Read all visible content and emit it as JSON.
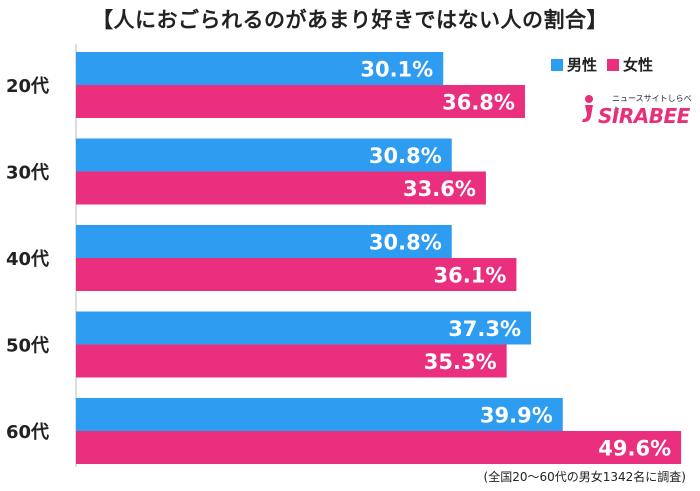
{
  "title": "【人におごられるのがあまり好きではない人の割合】",
  "legend": [
    {
      "label": "男性",
      "color": "#2e9cf0"
    },
    {
      "label": "女性",
      "color": "#ea2f7f"
    }
  ],
  "logo": {
    "tagline": "ニュースサイトしらべぇ",
    "brand": "SIRABEE"
  },
  "note": "(全国20〜60代の男女1342名に調査)",
  "chart_data": {
    "type": "bar",
    "orientation": "horizontal",
    "categories": [
      "20代",
      "30代",
      "40代",
      "50代",
      "60代"
    ],
    "series": [
      {
        "name": "男性",
        "color": "#2e9cf0",
        "values": [
          30.1,
          30.8,
          30.8,
          37.3,
          39.9
        ]
      },
      {
        "name": "女性",
        "color": "#ea2f7f",
        "values": [
          36.8,
          33.6,
          36.1,
          35.3,
          49.6
        ]
      }
    ],
    "value_suffix": "%",
    "xlim": [
      0,
      50
    ],
    "legend_position": "top-right"
  }
}
